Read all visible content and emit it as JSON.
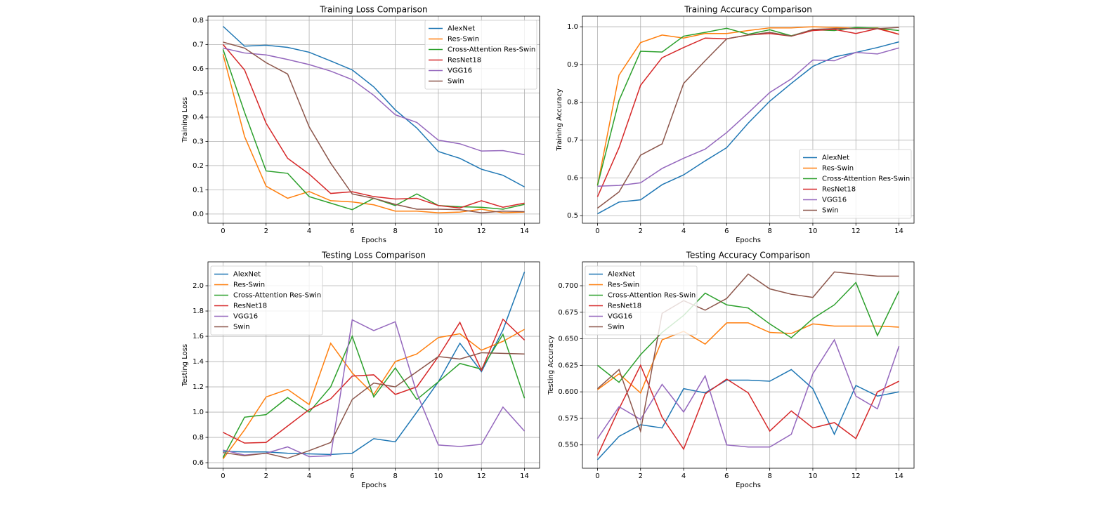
{
  "chart_data": [
    {
      "type": "line",
      "title": "Training Loss Comparison",
      "x_label": "Epochs",
      "y_label": "Training Loss",
      "x": [
        0,
        1,
        2,
        3,
        4,
        5,
        6,
        7,
        8,
        9,
        10,
        11,
        12,
        13,
        14
      ],
      "xlim": [
        -0.7,
        14.7
      ],
      "xticks": [
        0,
        2,
        4,
        6,
        8,
        10,
        12,
        14
      ],
      "ylim": [
        -0.038,
        0.817
      ],
      "yticks": [
        {
          "value": 0,
          "label": "0.0"
        },
        0.1,
        0.2,
        0.3,
        0.4,
        0.5,
        0.6,
        0.7,
        0.8
      ],
      "grid": true,
      "legend": "upper right",
      "series": [
        {
          "name": "AlexNet",
          "color": "#1f77b4",
          "values": [
            0.775,
            0.693,
            0.697,
            0.688,
            0.668,
            0.632,
            0.595,
            0.525,
            0.43,
            0.355,
            0.258,
            0.23,
            0.185,
            0.16,
            0.112
          ]
        },
        {
          "name": "Res-Swin",
          "color": "#ff7f0e",
          "values": [
            0.66,
            0.32,
            0.115,
            0.065,
            0.093,
            0.055,
            0.05,
            0.038,
            0.012,
            0.012,
            0.005,
            0.008,
            0.02,
            0.005,
            0.008
          ]
        },
        {
          "name": "Cross-Attention Res-Swin",
          "color": "#2ca02c",
          "values": [
            0.68,
            0.42,
            0.178,
            0.168,
            0.072,
            0.045,
            0.018,
            0.065,
            0.035,
            0.083,
            0.035,
            0.03,
            0.028,
            0.02,
            0.04
          ]
        },
        {
          "name": "ResNet18",
          "color": "#d62728",
          "values": [
            0.7,
            0.595,
            0.375,
            0.23,
            0.165,
            0.085,
            0.092,
            0.072,
            0.062,
            0.065,
            0.035,
            0.025,
            0.055,
            0.028,
            0.045
          ]
        },
        {
          "name": "VGG16",
          "color": "#9467bd",
          "values": [
            0.685,
            0.665,
            0.657,
            0.638,
            0.617,
            0.59,
            0.555,
            0.49,
            0.41,
            0.378,
            0.305,
            0.29,
            0.26,
            0.262,
            0.245
          ]
        },
        {
          "name": "Swin",
          "color": "#8c564b",
          "values": [
            0.71,
            0.685,
            0.625,
            0.578,
            0.36,
            0.21,
            0.083,
            0.065,
            0.04,
            0.02,
            0.02,
            0.018,
            0.005,
            0.012,
            0.01
          ]
        }
      ]
    },
    {
      "type": "line",
      "title": "Training Accuracy Comparison",
      "x_label": "Epochs",
      "y_label": "Training Accuracy",
      "x": [
        0,
        1,
        2,
        3,
        4,
        5,
        6,
        7,
        8,
        9,
        10,
        11,
        12,
        13,
        14
      ],
      "xlim": [
        -0.7,
        14.7
      ],
      "xticks": [
        0,
        2,
        4,
        6,
        8,
        10,
        12,
        14
      ],
      "ylim": [
        0.48,
        1.028
      ],
      "yticks": [
        0.5,
        0.6,
        0.7,
        0.8,
        0.9,
        {
          "value": 1,
          "label": "1.0"
        }
      ],
      "grid": true,
      "legend": "lower right",
      "series": [
        {
          "name": "AlexNet",
          "color": "#1f77b4",
          "values": [
            0.505,
            0.536,
            0.542,
            0.582,
            0.608,
            0.645,
            0.68,
            0.745,
            0.803,
            0.85,
            0.895,
            0.92,
            0.932,
            0.945,
            0.96
          ]
        },
        {
          "name": "Res-Swin",
          "color": "#ff7f0e",
          "values": [
            0.58,
            0.872,
            0.958,
            0.978,
            0.97,
            0.982,
            0.982,
            0.99,
            0.997,
            0.997,
            1.0,
            0.998,
            0.996,
            0.997,
            0.98
          ]
        },
        {
          "name": "Cross-Attention Res-Swin",
          "color": "#2ca02c",
          "values": [
            0.58,
            0.805,
            0.935,
            0.933,
            0.975,
            0.985,
            0.996,
            0.98,
            0.992,
            0.976,
            0.992,
            0.99,
            0.998,
            0.996,
            0.99
          ]
        },
        {
          "name": "ResNet18",
          "color": "#d62728",
          "values": [
            0.55,
            0.68,
            0.845,
            0.918,
            0.945,
            0.97,
            0.968,
            0.978,
            0.982,
            0.975,
            0.99,
            0.993,
            0.982,
            0.995,
            0.98
          ]
        },
        {
          "name": "VGG16",
          "color": "#9467bd",
          "values": [
            0.578,
            0.58,
            0.587,
            0.625,
            0.652,
            0.676,
            0.72,
            0.772,
            0.826,
            0.862,
            0.912,
            0.91,
            0.932,
            0.928,
            0.944
          ]
        },
        {
          "name": "Swin",
          "color": "#8c564b",
          "values": [
            0.52,
            0.563,
            0.66,
            0.69,
            0.85,
            0.91,
            0.968,
            0.978,
            0.985,
            0.975,
            0.993,
            0.995,
            0.995,
            0.995,
            0.998
          ]
        }
      ]
    },
    {
      "type": "line",
      "title": "Testing Loss Comparison",
      "x_label": "Epochs",
      "y_label": "Testing Loss",
      "x": [
        0,
        1,
        2,
        3,
        4,
        5,
        6,
        7,
        8,
        9,
        10,
        11,
        12,
        13,
        14
      ],
      "xlim": [
        -0.7,
        14.7
      ],
      "xticks": [
        0,
        2,
        4,
        6,
        8,
        10,
        12,
        14
      ],
      "ylim": [
        0.556,
        2.189
      ],
      "yticks": [
        0.6,
        0.8,
        {
          "value": 1,
          "label": "1.0"
        },
        1.2,
        1.4,
        1.6,
        1.8,
        {
          "value": 2,
          "label": "2.0"
        }
      ],
      "grid": true,
      "legend": "upper left",
      "series": [
        {
          "name": "AlexNet",
          "color": "#1f77b4",
          "values": [
            0.69,
            0.685,
            0.685,
            0.675,
            0.67,
            0.665,
            0.675,
            0.79,
            0.765,
            1.0,
            1.24,
            1.545,
            1.32,
            1.65,
            2.11
          ]
        },
        {
          "name": "Res-Swin",
          "color": "#ff7f0e",
          "values": [
            0.63,
            0.86,
            1.12,
            1.18,
            1.06,
            1.545,
            1.31,
            1.14,
            1.4,
            1.46,
            1.59,
            1.62,
            1.49,
            1.56,
            1.655
          ]
        },
        {
          "name": "Cross-Attention Res-Swin",
          "color": "#2ca02c",
          "values": [
            0.64,
            0.96,
            0.98,
            1.115,
            1.0,
            1.2,
            1.6,
            1.12,
            1.35,
            1.1,
            1.24,
            1.385,
            1.34,
            1.615,
            1.11
          ]
        },
        {
          "name": "ResNet18",
          "color": "#d62728",
          "values": [
            0.84,
            0.755,
            0.76,
            0.89,
            1.02,
            1.105,
            1.285,
            1.295,
            1.14,
            1.2,
            1.44,
            1.71,
            1.33,
            1.735,
            1.57
          ]
        },
        {
          "name": "VGG16",
          "color": "#9467bd",
          "values": [
            0.7,
            0.66,
            0.675,
            0.725,
            0.648,
            0.655,
            1.73,
            1.645,
            1.715,
            1.15,
            0.74,
            0.728,
            0.745,
            1.04,
            0.85
          ]
        },
        {
          "name": "Swin",
          "color": "#8c564b",
          "values": [
            0.68,
            0.655,
            0.675,
            0.635,
            0.695,
            0.76,
            1.1,
            1.23,
            1.2,
            1.32,
            1.44,
            1.42,
            1.47,
            1.465,
            1.46
          ]
        }
      ]
    },
    {
      "type": "line",
      "title": "Testing Accuracy Comparison",
      "x_label": "Epochs",
      "y_label": "Testing Accuracy",
      "x": [
        0,
        1,
        2,
        3,
        4,
        5,
        6,
        7,
        8,
        9,
        10,
        11,
        12,
        13,
        14
      ],
      "xlim": [
        -0.7,
        14.7
      ],
      "xticks": [
        0,
        2,
        4,
        6,
        8,
        10,
        12,
        14
      ],
      "ylim": [
        0.528,
        0.7225
      ],
      "yticks": [
        {
          "value": 0.55,
          "label": "0.550"
        },
        {
          "value": 0.575,
          "label": "0.575"
        },
        {
          "value": 0.6,
          "label": "0.600"
        },
        {
          "value": 0.625,
          "label": "0.625"
        },
        {
          "value": 0.65,
          "label": "0.650"
        },
        {
          "value": 0.675,
          "label": "0.675"
        },
        {
          "value": 0.7,
          "label": "0.700"
        }
      ],
      "grid": true,
      "legend": "upper left",
      "series": [
        {
          "name": "AlexNet",
          "color": "#1f77b4",
          "values": [
            0.536,
            0.558,
            0.569,
            0.566,
            0.603,
            0.599,
            0.611,
            0.611,
            0.61,
            0.621,
            0.603,
            0.56,
            0.606,
            0.596,
            0.6
          ]
        },
        {
          "name": "Res-Swin",
          "color": "#ff7f0e",
          "values": [
            0.602,
            0.617,
            0.599,
            0.649,
            0.657,
            0.645,
            0.665,
            0.665,
            0.656,
            0.655,
            0.664,
            0.662,
            0.662,
            0.662,
            0.661
          ]
        },
        {
          "name": "Cross-Attention Res-Swin",
          "color": "#2ca02c",
          "values": [
            0.625,
            0.609,
            0.635,
            0.656,
            0.672,
            0.693,
            0.682,
            0.679,
            0.664,
            0.651,
            0.669,
            0.682,
            0.703,
            0.653,
            0.695
          ]
        },
        {
          "name": "ResNet18",
          "color": "#d62728",
          "values": [
            0.54,
            0.584,
            0.625,
            0.576,
            0.546,
            0.598,
            0.612,
            0.599,
            0.563,
            0.582,
            0.566,
            0.571,
            0.556,
            0.6,
            0.61
          ]
        },
        {
          "name": "VGG16",
          "color": "#9467bd",
          "values": [
            0.556,
            0.586,
            0.574,
            0.607,
            0.581,
            0.615,
            0.55,
            0.548,
            0.548,
            0.56,
            0.617,
            0.649,
            0.596,
            0.584,
            0.643
          ]
        },
        {
          "name": "Swin",
          "color": "#8c564b",
          "values": [
            0.603,
            0.621,
            0.563,
            0.674,
            0.686,
            0.677,
            0.688,
            0.711,
            0.697,
            0.692,
            0.689,
            0.713,
            0.711,
            0.709,
            0.709
          ]
        }
      ]
    }
  ]
}
